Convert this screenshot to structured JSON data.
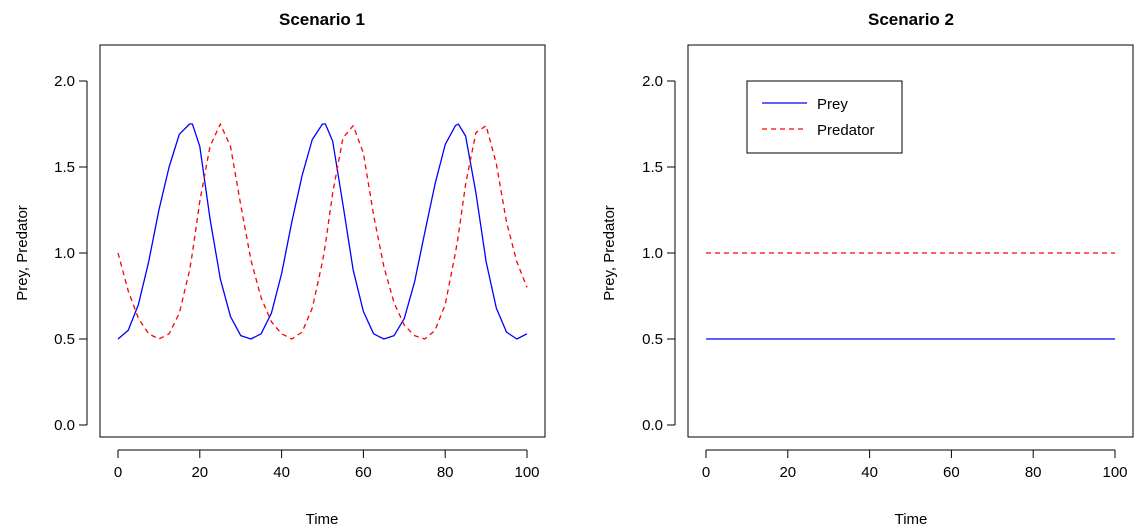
{
  "colors": {
    "prey": "#0000ff",
    "predator": "#ff0000"
  },
  "chart_data": [
    {
      "type": "line",
      "title": "Scenario 1",
      "xlabel": "Time",
      "ylabel": "Prey, Predator",
      "xlim": [
        0,
        100
      ],
      "ylim": [
        0,
        2
      ],
      "xticks": [
        "0",
        "20",
        "40",
        "60",
        "80",
        "100"
      ],
      "yticks": [
        "0.0",
        "0.5",
        "1.0",
        "1.5",
        "2.0"
      ],
      "grid": false,
      "legend": null,
      "x": [
        0,
        2.5,
        5,
        7.5,
        10,
        12.5,
        15,
        17.5,
        18.2,
        20,
        22.5,
        25,
        27.5,
        30,
        32.5,
        35,
        37.5,
        40,
        42.5,
        45,
        47.5,
        50,
        50.7,
        52.5,
        55,
        57.5,
        60,
        62.5,
        65,
        67.5,
        70,
        72.5,
        75,
        77.5,
        80,
        82.5,
        83.2,
        85,
        87.5,
        90,
        92.5,
        95,
        97.5,
        100
      ],
      "series": [
        {
          "values": [
            0.5,
            0.55,
            0.7,
            0.95,
            1.25,
            1.5,
            1.69,
            1.75,
            1.75,
            1.62,
            1.2,
            0.85,
            0.63,
            0.52,
            0.5,
            0.53,
            0.65,
            0.88,
            1.18,
            1.45,
            1.66,
            1.75,
            1.75,
            1.65,
            1.28,
            0.9,
            0.66,
            0.53,
            0.5,
            0.52,
            0.62,
            0.83,
            1.12,
            1.4,
            1.63,
            1.74,
            1.75,
            1.68,
            1.35,
            0.95,
            0.68,
            0.54,
            0.5,
            0.53
          ],
          "style": "solid"
        },
        {
          "values": [
            1.0,
            0.78,
            0.62,
            0.53,
            0.5,
            0.53,
            0.65,
            0.9,
            1.0,
            1.3,
            1.62,
            1.75,
            1.62,
            1.28,
            0.96,
            0.74,
            0.6,
            0.53,
            0.5,
            0.54,
            0.68,
            0.95,
            1.05,
            1.35,
            1.67,
            1.74,
            1.58,
            1.22,
            0.92,
            0.71,
            0.58,
            0.52,
            0.5,
            0.55,
            0.7,
            1.0,
            1.1,
            1.4,
            1.7,
            1.74,
            1.52,
            1.18,
            0.95,
            0.8
          ],
          "style": "dashed"
        }
      ]
    },
    {
      "type": "line",
      "title": "Scenario 2",
      "xlabel": "Time",
      "ylabel": "Prey, Predator",
      "xlim": [
        0,
        100
      ],
      "ylim": [
        0,
        2
      ],
      "xticks": [
        "0",
        "20",
        "40",
        "60",
        "80",
        "100"
      ],
      "yticks": [
        "0.0",
        "0.5",
        "1.0",
        "1.5",
        "2.0"
      ],
      "grid": false,
      "legend": "top-left",
      "x": [
        0,
        100
      ],
      "series": [
        {
          "name": "Prey",
          "values": [
            0.5,
            0.5
          ],
          "style": "solid"
        },
        {
          "name": "Predator",
          "values": [
            1.0,
            1.0
          ],
          "style": "dashed"
        }
      ]
    }
  ]
}
